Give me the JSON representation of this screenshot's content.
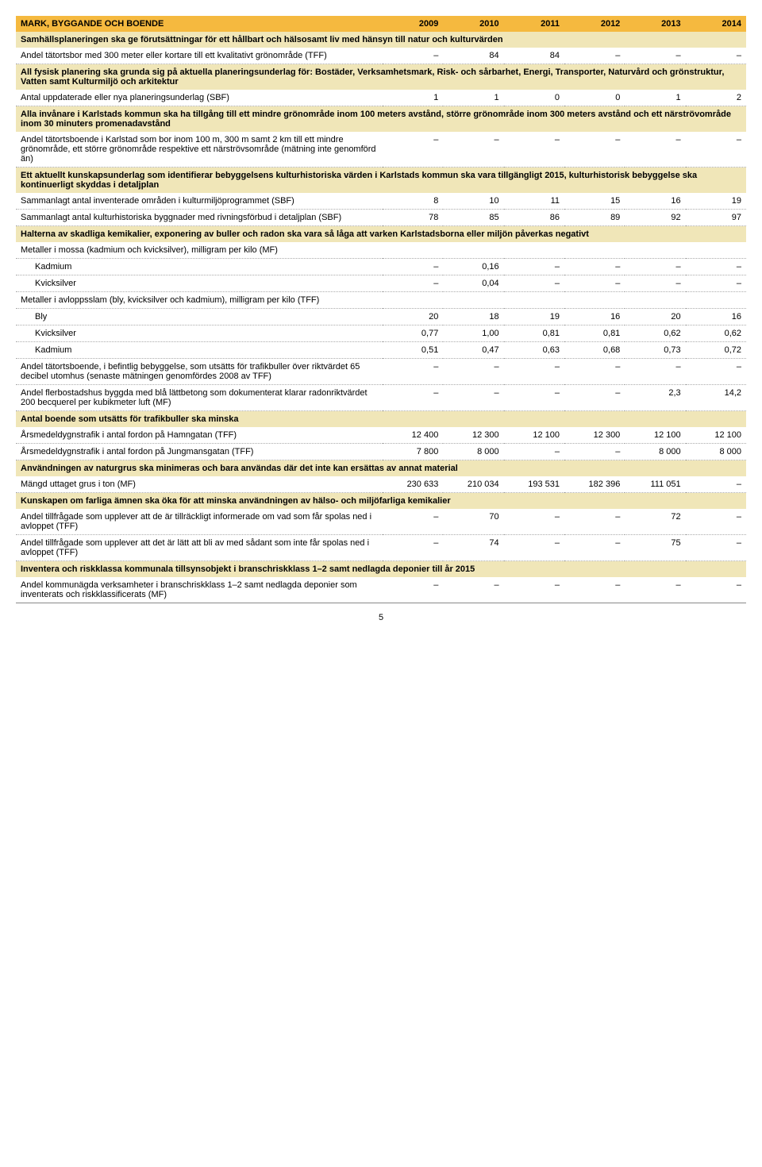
{
  "header": {
    "title": "MARK, BYGGANDE OCH BOENDE",
    "years": [
      "2009",
      "2010",
      "2011",
      "2012",
      "2013",
      "2014"
    ]
  },
  "rows": [
    {
      "type": "goal",
      "label": "Samhällsplaneringen ska ge förutsättningar för ett hållbart och hälsosamt liv med hänsyn till natur och kulturvärden"
    },
    {
      "type": "measure",
      "label": "Andel tätortsbor med 300 meter eller kortare till ett kvalitativt grönområde (TFF)",
      "vals": [
        "–",
        "84",
        "84",
        "–",
        "–",
        "–"
      ]
    },
    {
      "type": "goal",
      "label": "All fysisk planering ska grunda sig på aktuella planeringsunderlag för: Bostäder, Verksamhetsmark, Risk- och sårbarhet, Energi, Transporter, Naturvård och grönstruktur, Vatten samt Kulturmiljö och arkitektur"
    },
    {
      "type": "measure",
      "label": "Antal uppdaterade eller nya planeringsunderlag (SBF)",
      "vals": [
        "1",
        "1",
        "0",
        "0",
        "1",
        "2"
      ]
    },
    {
      "type": "goal",
      "label": "Alla invånare i Karlstads kommun ska ha tillgång till ett mindre grönområde inom 100 meters avstånd, större grönområde inom 300 meters avstånd och ett närströvområde inom 30 minuters promenadavstånd"
    },
    {
      "type": "measure",
      "label": "Andel tätortsboende i Karlstad som bor inom 100 m, 300 m samt 2 km till ett mindre grönområde, ett större grönområde respektive ett närströvsområde (mätning inte genomförd än)",
      "vals": [
        "–",
        "–",
        "–",
        "–",
        "–",
        "–"
      ]
    },
    {
      "type": "goal",
      "label": "Ett aktuellt kunskapsunderlag som identifierar bebyggelsens kulturhistoriska värden i Karlstads kommun ska vara tillgängligt 2015, kulturhistorisk bebyggelse ska kontinuerligt skyddas i detaljplan"
    },
    {
      "type": "measure",
      "label": "Sammanlagt antal inventerade områden i kulturmiljöprogrammet (SBF)",
      "vals": [
        "8",
        "10",
        "11",
        "15",
        "16",
        "19"
      ]
    },
    {
      "type": "measure",
      "label": "Sammanlagt antal kulturhistoriska byggnader med rivningsförbud i detaljplan (SBF)",
      "vals": [
        "78",
        "85",
        "86",
        "89",
        "92",
        "97"
      ]
    },
    {
      "type": "goal",
      "label": "Halterna av skadliga kemikalier, exponering av buller och radon ska vara så låga att varken Karlstadsborna eller miljön påverkas negativt"
    },
    {
      "type": "measure",
      "label": "Metaller i mossa (kadmium och kvicksilver), milligram per kilo (MF)",
      "vals": [
        "",
        "",
        "",
        "",
        "",
        ""
      ]
    },
    {
      "type": "measure",
      "indent": true,
      "label": "Kadmium",
      "vals": [
        "–",
        "0,16",
        "–",
        "–",
        "–",
        "–"
      ]
    },
    {
      "type": "measure",
      "indent": true,
      "label": "Kvicksilver",
      "vals": [
        "–",
        "0,04",
        "–",
        "–",
        "–",
        "–"
      ]
    },
    {
      "type": "measure",
      "label": "Metaller i avloppsslam (bly, kvicksilver och kadmium), milligram per kilo (TFF)",
      "vals": [
        "",
        "",
        "",
        "",
        "",
        ""
      ]
    },
    {
      "type": "measure",
      "indent": true,
      "label": "Bly",
      "vals": [
        "20",
        "18",
        "19",
        "16",
        "20",
        "16"
      ]
    },
    {
      "type": "measure",
      "indent": true,
      "label": "Kvicksilver",
      "vals": [
        "0,77",
        "1,00",
        "0,81",
        "0,81",
        "0,62",
        "0,62"
      ]
    },
    {
      "type": "measure",
      "indent": true,
      "label": "Kadmium",
      "vals": [
        "0,51",
        "0,47",
        "0,63",
        "0,68",
        "0,73",
        "0,72"
      ]
    },
    {
      "type": "measure",
      "label": "Andel tätortsboende, i befintlig bebyggelse, som utsätts för trafikbuller över riktvärdet 65 decibel utomhus (senaste mätningen genomfördes 2008 av TFF)",
      "vals": [
        "–",
        "–",
        "–",
        "–",
        "–",
        "–"
      ]
    },
    {
      "type": "measure",
      "label": "Andel flerbostadshus byggda med blå lättbetong som dokumenterat klarar radonriktvärdet 200 becquerel per kubikmeter luft (MF)",
      "vals": [
        "–",
        "–",
        "–",
        "–",
        "2,3",
        "14,2"
      ]
    },
    {
      "type": "goal",
      "label": "Antal boende som utsätts för trafikbuller ska minska"
    },
    {
      "type": "measure",
      "label": "Årsmedeldygnstrafik i antal fordon på Hamngatan (TFF)",
      "vals": [
        "12 400",
        "12 300",
        "12 100",
        "12 300",
        "12 100",
        "12 100"
      ]
    },
    {
      "type": "measure",
      "label": "Årsmedeldygnstrafik i antal fordon på Jungmansgatan (TFF)",
      "vals": [
        "7 800",
        "8 000",
        "–",
        "–",
        "8 000",
        "8 000"
      ]
    },
    {
      "type": "goal",
      "label": "Användningen av naturgrus ska minimeras och bara användas där det inte kan ersättas av annat material"
    },
    {
      "type": "measure",
      "label": "Mängd uttaget grus i ton (MF)",
      "vals": [
        "230 633",
        "210 034",
        "193 531",
        "182 396",
        "111 051",
        "–"
      ]
    },
    {
      "type": "goal",
      "label": "Kunskapen om farliga ämnen ska öka för att minska användningen av hälso- och miljöfarliga kemikalier"
    },
    {
      "type": "measure",
      "label": "Andel tillfrågade som upplever att de är tillräckligt informerade om vad som får spolas ned i avloppet (TFF)",
      "vals": [
        "–",
        "70",
        "–",
        "–",
        "72",
        "–"
      ]
    },
    {
      "type": "measure",
      "label": "Andel tillfrågade som upplever att det är lätt att bli av med sådant som inte får spolas ned i avloppet (TFF)",
      "vals": [
        "–",
        "74",
        "–",
        "–",
        "75",
        "–"
      ]
    },
    {
      "type": "goal",
      "label": "Inventera och riskklassa kommunala tillsynsobjekt i branschriskklass 1–2 samt nedlagda deponier till år 2015"
    },
    {
      "type": "measure",
      "last": true,
      "label": "Andel kommunägda verksamheter i branschriskklass 1–2 samt nedlagda deponier som inventerats och riskklassificerats (MF)",
      "vals": [
        "–",
        "–",
        "–",
        "–",
        "–",
        "–"
      ]
    }
  ],
  "pageNumber": "5"
}
